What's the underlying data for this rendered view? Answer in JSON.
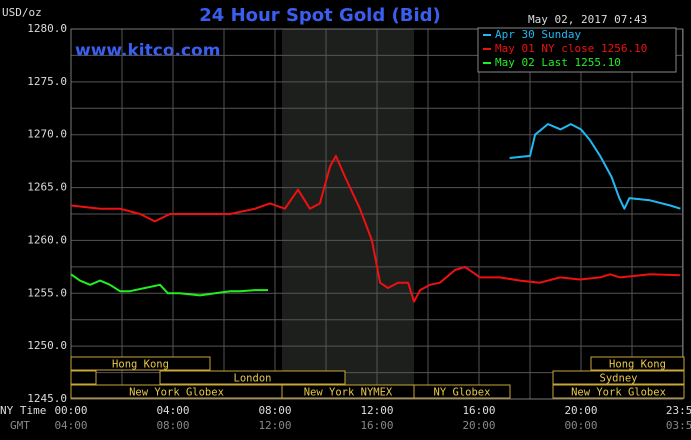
{
  "chart_data": {
    "type": "line",
    "title": "24 Hour Spot Gold (Bid)",
    "y_label": "USD/oz",
    "timestamp": "May 02, 2017 07:43",
    "watermark": "www.kitco.com",
    "x_label": "NY Time",
    "x2_label": "GMT",
    "xlim": [
      0,
      24
    ],
    "xticks": [
      {
        "value": 0,
        "label": "00:00"
      },
      {
        "value": 4,
        "label": "04:00"
      },
      {
        "value": 8,
        "label": "08:00"
      },
      {
        "value": 12,
        "label": "12:00"
      },
      {
        "value": 16,
        "label": "16:00"
      },
      {
        "value": 20,
        "label": "20:00"
      },
      {
        "value": 23.98,
        "label": "23:59"
      }
    ],
    "x2tick_labels": [
      "04:00",
      "08:00",
      "12:00",
      "16:00",
      "20:00",
      "00:00",
      "03:59"
    ],
    "xminor": [
      2,
      6,
      10,
      14,
      18,
      22
    ],
    "ylim": [
      1245,
      1280
    ],
    "yticks": [
      {
        "value": 1245,
        "label": "1245.0"
      },
      {
        "value": 1250,
        "label": "1250.0"
      },
      {
        "value": 1255,
        "label": "1255.0"
      },
      {
        "value": 1260,
        "label": "1260.0"
      },
      {
        "value": 1265,
        "label": "1265.0"
      },
      {
        "value": 1270,
        "label": "1270.0"
      },
      {
        "value": 1275,
        "label": "1275.0"
      },
      {
        "value": 1280,
        "label": "1280.0"
      }
    ],
    "yminor": [
      1247.5,
      1252.5,
      1257.5,
      1262.5,
      1267.5,
      1272.5,
      1277.5
    ],
    "grid": true,
    "legend": "top right",
    "sessions": [
      "Hong Kong",
      "London",
      "New York Globex",
      "New York NYMEX",
      "NY Globex",
      "Hong Kong",
      "Sydney",
      "New York Globex"
    ],
    "series": [
      {
        "name": "Apr 30 Sunday",
        "color": "#22b8f0",
        "x": [
          17.2,
          18.0,
          18.2,
          18.7,
          19.2,
          19.6,
          20.0,
          20.35,
          20.75,
          21.2,
          21.5,
          21.7,
          21.9,
          22.7,
          23.5,
          23.9
        ],
        "values": [
          1267.8,
          1268,
          1270,
          1271,
          1270.5,
          1271,
          1270.5,
          1269.5,
          1268,
          1266,
          1264,
          1263,
          1264,
          1263.8,
          1263.3,
          1263
        ]
      },
      {
        "name": "May 01 NY close 1256.10",
        "color": "#ee1111",
        "x": [
          0,
          1.14,
          1.92,
          2.71,
          3.29,
          3.88,
          5.06,
          6.24,
          7.22,
          7.8,
          8.39,
          8.9,
          9.37,
          9.76,
          10.16,
          10.39,
          10.75,
          11.33,
          11.8,
          12.12,
          12.43,
          12.82,
          13.22,
          13.45,
          13.69,
          14.08,
          14.47,
          15.06,
          15.45,
          16.04,
          16.82,
          17.61,
          18.39,
          19.18,
          19.96,
          20.75,
          21.14,
          21.53,
          22.71,
          23.88
        ],
        "values": [
          1263.3,
          1263,
          1263,
          1262.5,
          1261.8,
          1262.5,
          1262.5,
          1262.5,
          1263,
          1263.5,
          1263,
          1264.8,
          1263,
          1263.5,
          1267,
          1268,
          1266,
          1263,
          1260,
          1256,
          1255.5,
          1256,
          1256,
          1254.2,
          1255.3,
          1255.8,
          1256,
          1257.2,
          1257.5,
          1256.5,
          1256.5,
          1256.2,
          1256,
          1256.5,
          1256.3,
          1256.5,
          1256.8,
          1256.5,
          1256.8,
          1256.7
        ]
      },
      {
        "name": "May 02 Last 1255.10",
        "color": "#22ee22",
        "x": [
          0,
          0.35,
          0.75,
          1.14,
          1.53,
          1.92,
          2.31,
          2.9,
          3.49,
          3.8,
          4.27,
          5.06,
          5.65,
          6.24,
          6.63,
          7.22,
          7.73
        ],
        "values": [
          1256.8,
          1256.2,
          1255.8,
          1256.2,
          1255.8,
          1255.2,
          1255.2,
          1255.5,
          1255.8,
          1255,
          1255,
          1254.8,
          1255,
          1255.2,
          1255.2,
          1255.3,
          1255.3
        ]
      }
    ]
  }
}
